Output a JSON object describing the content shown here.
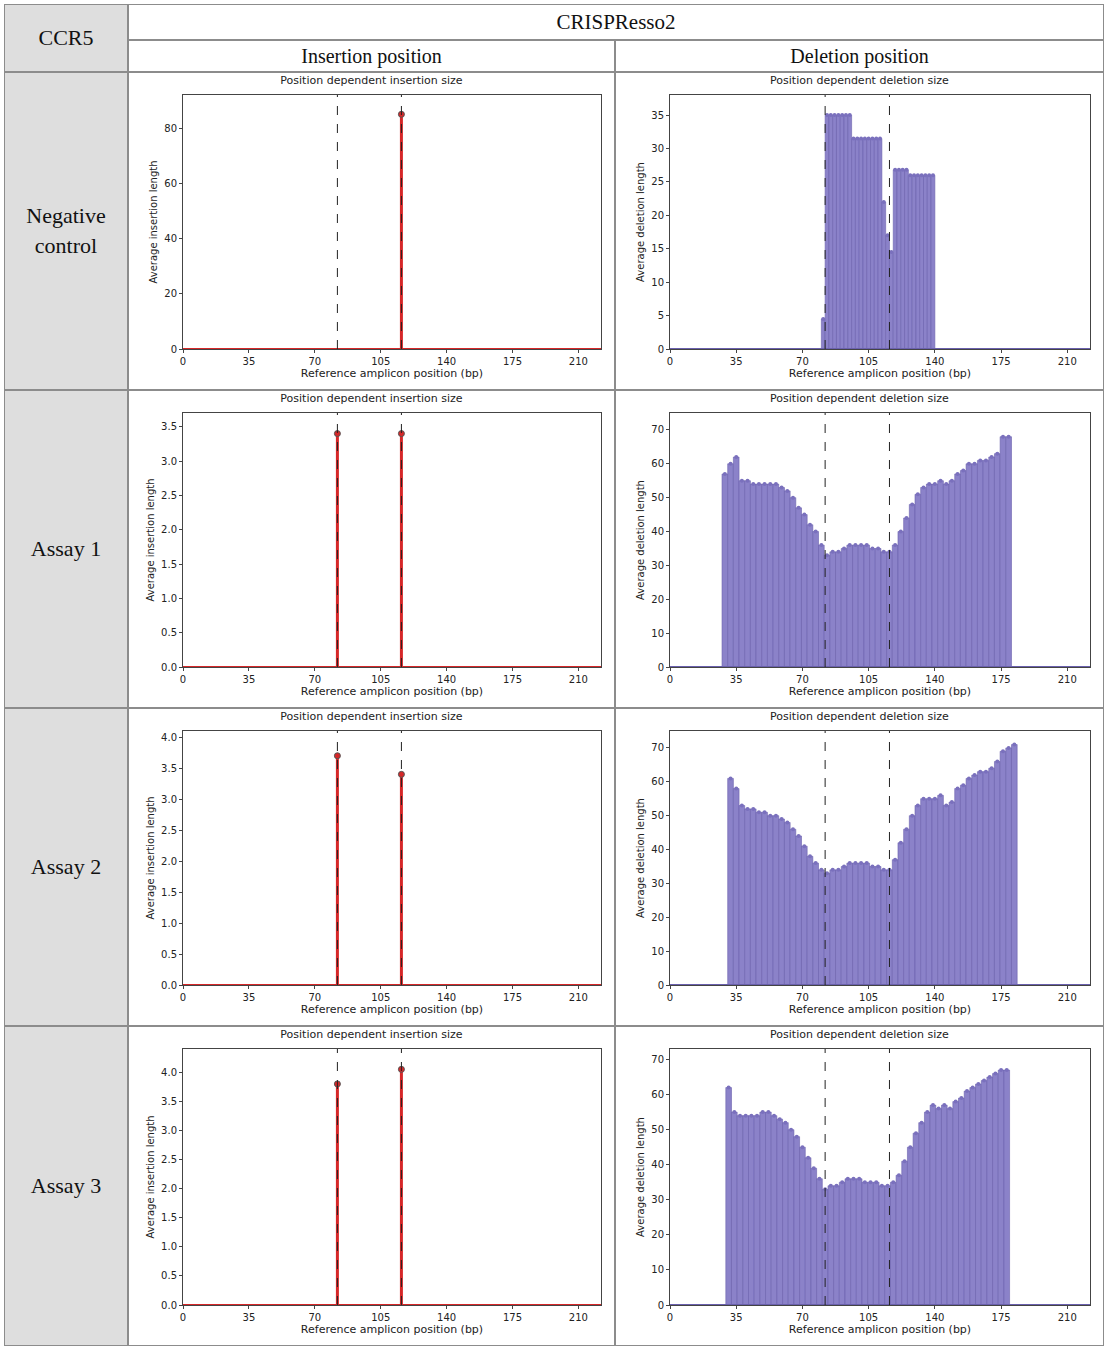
{
  "header": {
    "corner": "CCR5",
    "tool": "CRISPResso2",
    "columns": [
      "Insertion position",
      "Deletion position"
    ],
    "rows": [
      "Negative control",
      "Assay 1",
      "Assay 2",
      "Assay 3"
    ]
  },
  "chart_data": [
    {
      "type": "stem",
      "title": "Position dependent insertion size",
      "x_label": "Reference amplicon position (bp)",
      "y_label": "Average insertion length",
      "x": [
        116
      ],
      "values": [
        85
      ],
      "color": "#d62728",
      "xlim": [
        0,
        222
      ],
      "xticks": [
        0,
        35,
        70,
        105,
        140,
        175,
        210
      ],
      "ylim": [
        0,
        92
      ],
      "yticks": [
        0,
        20,
        40,
        60,
        80
      ],
      "reference_lines": [
        82,
        116
      ]
    },
    {
      "type": "bar",
      "title": "Position dependent deletion size",
      "x_label": "Reference amplicon position (bp)",
      "y_label": "Average deletion length",
      "x": [
        81,
        83,
        85,
        87,
        89,
        91,
        93,
        95,
        97,
        99,
        101,
        103,
        105,
        107,
        109,
        111,
        113,
        115,
        117,
        119,
        121,
        123,
        125,
        127,
        129,
        131,
        133,
        135,
        137,
        139
      ],
      "values": [
        4.5,
        35,
        35,
        35,
        35,
        35,
        35,
        35,
        31.5,
        31.5,
        31.5,
        31.5,
        31.5,
        31.5,
        31.5,
        31.5,
        22,
        17,
        14.5,
        26.8,
        26.8,
        26.8,
        26.8,
        26,
        26,
        26,
        26,
        26,
        26,
        26
      ],
      "color": "#8b82c9",
      "xlim": [
        0,
        222
      ],
      "xticks": [
        0,
        35,
        70,
        105,
        140,
        175,
        210
      ],
      "ylim": [
        0,
        38
      ],
      "yticks": [
        0,
        5,
        10,
        15,
        20,
        25,
        30,
        35
      ],
      "reference_lines": [
        82,
        116
      ]
    },
    {
      "type": "stem",
      "title": "Position dependent insertion size",
      "x_label": "Reference amplicon position (bp)",
      "y_label": "Average insertion length",
      "x": [
        82,
        116
      ],
      "values": [
        3.4,
        3.4
      ],
      "color": "#d62728",
      "xlim": [
        0,
        222
      ],
      "xticks": [
        0,
        35,
        70,
        105,
        140,
        175,
        210
      ],
      "ylim": [
        0,
        3.7
      ],
      "yticks": [
        {
          "value": 0,
          "label": "0.0"
        },
        0.5,
        {
          "value": 1,
          "label": "1.0"
        },
        1.5,
        {
          "value": 2,
          "label": "2.0"
        },
        2.5,
        {
          "value": 3,
          "label": "3.0"
        },
        3.5
      ],
      "reference_lines": [
        82,
        116
      ]
    },
    {
      "type": "bar",
      "title": "Position dependent deletion size",
      "x_label": "Reference amplicon position (bp)",
      "y_label": "Average deletion length",
      "x": [
        29,
        32,
        35,
        38,
        41,
        44,
        47,
        50,
        53,
        56,
        59,
        62,
        65,
        68,
        71,
        74,
        77,
        80,
        83,
        86,
        89,
        92,
        95,
        98,
        101,
        104,
        107,
        110,
        113,
        116,
        119,
        122,
        125,
        128,
        131,
        134,
        137,
        140,
        143,
        146,
        149,
        152,
        155,
        158,
        161,
        164,
        167,
        170,
        173,
        176,
        179
      ],
      "values": [
        57,
        60,
        62,
        55,
        55,
        54,
        54,
        54,
        54,
        54,
        53,
        52,
        50,
        47,
        45,
        42,
        40,
        36,
        33,
        34,
        34,
        35,
        36,
        36,
        36,
        36,
        35,
        35,
        34,
        34,
        36,
        40,
        44,
        48,
        51,
        53,
        54,
        54,
        55,
        54,
        55,
        57,
        58,
        60,
        60,
        61,
        61,
        62,
        63,
        68,
        68
      ],
      "color": "#8b82c9",
      "xlim": [
        0,
        222
      ],
      "xticks": [
        0,
        35,
        70,
        105,
        140,
        175,
        210
      ],
      "ylim": [
        0,
        75
      ],
      "yticks": [
        0,
        10,
        20,
        30,
        40,
        50,
        60,
        70
      ],
      "reference_lines": [
        82,
        116
      ]
    },
    {
      "type": "stem",
      "title": "Position dependent insertion size",
      "x_label": "Reference amplicon position (bp)",
      "y_label": "Average insertion length",
      "x": [
        82,
        116
      ],
      "values": [
        3.7,
        3.4
      ],
      "color": "#d62728",
      "xlim": [
        0,
        222
      ],
      "xticks": [
        0,
        35,
        70,
        105,
        140,
        175,
        210
      ],
      "ylim": [
        0,
        4.1
      ],
      "yticks": [
        {
          "value": 0,
          "label": "0.0"
        },
        0.5,
        {
          "value": 1,
          "label": "1.0"
        },
        1.5,
        {
          "value": 2,
          "label": "2.0"
        },
        2.5,
        {
          "value": 3,
          "label": "3.0"
        },
        3.5,
        {
          "value": 4,
          "label": "4.0"
        }
      ],
      "reference_lines": [
        82,
        116
      ]
    },
    {
      "type": "bar",
      "title": "Position dependent deletion size",
      "x_label": "Reference amplicon position (bp)",
      "y_label": "Average deletion length",
      "x": [
        32,
        35,
        38,
        41,
        44,
        47,
        50,
        53,
        56,
        59,
        62,
        65,
        68,
        71,
        74,
        77,
        80,
        83,
        86,
        89,
        92,
        95,
        98,
        101,
        104,
        107,
        110,
        113,
        116,
        119,
        122,
        125,
        128,
        131,
        134,
        137,
        140,
        143,
        146,
        149,
        152,
        155,
        158,
        161,
        164,
        167,
        170,
        173,
        176,
        179,
        182
      ],
      "values": [
        61,
        58,
        53,
        52,
        52,
        51,
        51,
        50,
        50,
        49,
        48,
        46,
        44,
        41,
        38,
        36,
        34,
        33,
        34,
        34,
        35,
        36,
        36,
        36,
        36,
        35,
        35,
        34,
        34,
        37,
        42,
        46,
        50,
        53,
        55,
        55,
        55,
        56,
        53,
        54,
        58,
        59,
        61,
        62,
        63,
        63,
        64,
        66,
        69,
        70,
        71
      ],
      "color": "#8b82c9",
      "xlim": [
        0,
        222
      ],
      "xticks": [
        0,
        35,
        70,
        105,
        140,
        175,
        210
      ],
      "ylim": [
        0,
        75
      ],
      "yticks": [
        0,
        10,
        20,
        30,
        40,
        50,
        60,
        70
      ],
      "reference_lines": [
        82,
        116
      ]
    },
    {
      "type": "stem",
      "title": "Position dependent insertion size",
      "x_label": "Reference amplicon position (bp)",
      "y_label": "Average insertion length",
      "x": [
        82,
        116
      ],
      "values": [
        3.8,
        4.05
      ],
      "color": "#d62728",
      "xlim": [
        0,
        222
      ],
      "xticks": [
        0,
        35,
        70,
        105,
        140,
        175,
        210
      ],
      "ylim": [
        0,
        4.4
      ],
      "yticks": [
        {
          "value": 0,
          "label": "0.0"
        },
        0.5,
        {
          "value": 1,
          "label": "1.0"
        },
        1.5,
        {
          "value": 2,
          "label": "2.0"
        },
        2.5,
        {
          "value": 3,
          "label": "3.0"
        },
        3.5,
        {
          "value": 4,
          "label": "4.0"
        }
      ],
      "reference_lines": [
        82,
        116
      ]
    },
    {
      "type": "bar",
      "title": "Position dependent deletion size",
      "x_label": "Reference amplicon position (bp)",
      "y_label": "Average deletion length",
      "x": [
        31,
        34,
        37,
        40,
        43,
        46,
        49,
        52,
        55,
        58,
        61,
        64,
        67,
        70,
        73,
        76,
        79,
        82,
        85,
        88,
        91,
        94,
        97,
        100,
        103,
        106,
        109,
        112,
        115,
        118,
        121,
        124,
        127,
        130,
        133,
        136,
        139,
        142,
        145,
        148,
        151,
        154,
        157,
        160,
        163,
        166,
        169,
        172,
        175,
        178
      ],
      "values": [
        62,
        55,
        54,
        54,
        54,
        54,
        55,
        55,
        54,
        53,
        52,
        50,
        48,
        45,
        42,
        39,
        36,
        33,
        34,
        34,
        35,
        36,
        36,
        36,
        35,
        35,
        35,
        34,
        34,
        35,
        37,
        41,
        45,
        49,
        52,
        55,
        57,
        56,
        57,
        56,
        58,
        59,
        61,
        62,
        63,
        64,
        65,
        66,
        67,
        67
      ],
      "color": "#8b82c9",
      "xlim": [
        0,
        222
      ],
      "xticks": [
        0,
        35,
        70,
        105,
        140,
        175,
        210
      ],
      "ylim": [
        0,
        73
      ],
      "yticks": [
        0,
        10,
        20,
        30,
        40,
        50,
        60,
        70
      ],
      "reference_lines": [
        82,
        116
      ]
    }
  ]
}
